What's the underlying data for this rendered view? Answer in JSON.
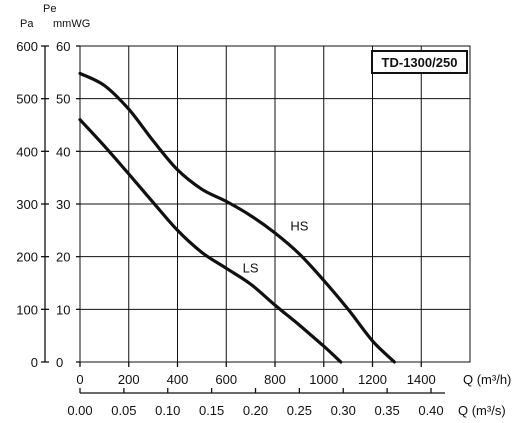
{
  "chart_data": {
    "type": "line",
    "title": "TD-1300/250",
    "header": {
      "pe": "Pe",
      "pa": "Pa",
      "mmwg": "mmWG"
    },
    "x_axis_primary": {
      "label": "Q (m³/h)",
      "ticks": [
        0,
        200,
        400,
        600,
        800,
        1000,
        1200,
        1400
      ],
      "tick_labels": [
        "0",
        "200",
        "400",
        "600",
        "800",
        "1000",
        "1200",
        "1400"
      ],
      "range": [
        0,
        1600
      ]
    },
    "x_axis_secondary": {
      "label": "Q (m³/s)",
      "tick_labels": [
        "0.00",
        "0.05",
        "0.10",
        "0.15",
        "0.20",
        "0.25",
        "0.30",
        "0.35",
        "0.40"
      ]
    },
    "y_axis_pa": {
      "ticks": [
        0,
        100,
        200,
        300,
        400,
        500,
        600
      ],
      "tick_labels": [
        "0",
        "100",
        "200",
        "300",
        "400",
        "500",
        "600"
      ],
      "range": [
        0,
        600
      ]
    },
    "y_axis_mmwg": {
      "tick_labels": [
        "0",
        "10",
        "20",
        "30",
        "40",
        "50",
        "60"
      ]
    },
    "grid": true,
    "series": [
      {
        "name": "HS",
        "x": [
          0,
          100,
          200,
          300,
          400,
          500,
          600,
          700,
          800,
          900,
          1000,
          1100,
          1200,
          1290
        ],
        "y": [
          548,
          525,
          480,
          420,
          365,
          328,
          305,
          278,
          245,
          205,
          155,
          100,
          40,
          0
        ]
      },
      {
        "name": "LS",
        "x": [
          0,
          100,
          200,
          300,
          400,
          500,
          600,
          700,
          800,
          900,
          1000,
          1070
        ],
        "y": [
          460,
          410,
          357,
          303,
          250,
          208,
          178,
          148,
          108,
          70,
          30,
          0
        ]
      }
    ]
  }
}
